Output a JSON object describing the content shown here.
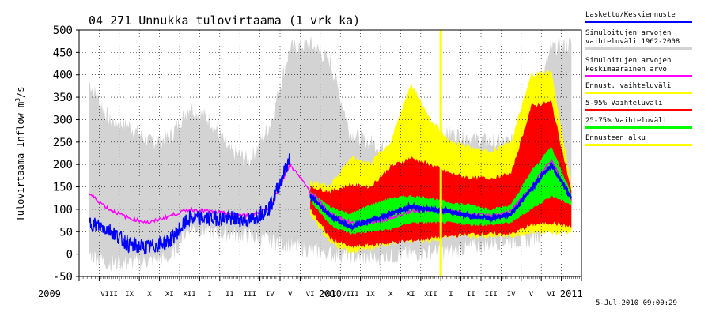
{
  "chart_data": {
    "type": "area",
    "title": "04 271 Unnukka tulovirtaama (1 vrk ka)",
    "ylabel": "Tulovirtaama Inflow m³/s",
    "ylabel_parts": {
      "main": "Tulovirtaama Inflow m",
      "sup": "3",
      "tail": "/s"
    },
    "ylim": [
      -50,
      500
    ],
    "yticks": [
      -50,
      0,
      50,
      100,
      150,
      200,
      250,
      300,
      350,
      400,
      450,
      500
    ],
    "timestamp": "5-Jul-2010 09:00:29",
    "forecast_start_month_index": 18,
    "years": [
      {
        "label": "2009",
        "month_index": 0
      },
      {
        "label": "2010",
        "month_index": 12
      },
      {
        "label": "2011",
        "month_index": 24
      }
    ],
    "months": [
      "VIII",
      "IX",
      "X",
      "XI",
      "XII",
      "I",
      "II",
      "III",
      "IV",
      "V",
      "VI",
      "VII",
      "VIII",
      "IX",
      "X",
      "XI",
      "XII",
      "I",
      "II",
      "III",
      "IV",
      "V",
      "VI"
    ],
    "months_start_index": 7,
    "sim_band": {
      "upper": [
        385,
        300,
        285,
        250,
        260,
        330,
        300,
        230,
        210,
        290,
        460,
        470,
        430,
        270,
        250,
        230,
        230,
        250,
        270,
        260,
        250,
        250,
        300,
        460,
        470
      ],
      "lower": [
        0,
        -20,
        -20,
        -15,
        -10,
        60,
        50,
        45,
        40,
        30,
        20,
        10,
        0,
        -5,
        -10,
        -5,
        0,
        5,
        5,
        15,
        25,
        30,
        30,
        70,
        80
      ]
    },
    "sim_mean": [
      135,
      100,
      80,
      70,
      85,
      100,
      95,
      90,
      85,
      105,
      200,
      140,
      90,
      70,
      70,
      80,
      95,
      100,
      95,
      90,
      85,
      95,
      150,
      210,
      120
    ],
    "observed": [
      70,
      55,
      20,
      15,
      30,
      80,
      80,
      80,
      75,
      105,
      215,
      null,
      null,
      null,
      null,
      null,
      null,
      null,
      null,
      null,
      null,
      null,
      null,
      null,
      null
    ],
    "forecast": [
      null,
      null,
      null,
      null,
      null,
      null,
      null,
      null,
      null,
      null,
      null,
      130,
      85,
      60,
      75,
      90,
      105,
      100,
      95,
      85,
      80,
      90,
      145,
      200,
      125
    ],
    "bands": {
      "ennuste_upper": [
        null,
        null,
        null,
        null,
        null,
        null,
        null,
        null,
        null,
        null,
        null,
        160,
        155,
        215,
        205,
        250,
        380,
        300,
        250,
        240,
        230,
        250,
        400,
        410,
        150
      ],
      "ennuste_lower": [
        null,
        null,
        null,
        null,
        null,
        null,
        null,
        null,
        null,
        null,
        null,
        90,
        25,
        5,
        10,
        25,
        30,
        30,
        40,
        40,
        40,
        40,
        50,
        45,
        50
      ],
      "p95": [
        null,
        null,
        null,
        null,
        null,
        null,
        null,
        null,
        null,
        null,
        null,
        150,
        140,
        155,
        150,
        195,
        215,
        200,
        180,
        170,
        170,
        180,
        330,
        340,
        140
      ],
      "p5": [
        null,
        null,
        null,
        null,
        null,
        null,
        null,
        null,
        null,
        null,
        null,
        100,
        35,
        15,
        20,
        25,
        30,
        35,
        40,
        45,
        45,
        45,
        65,
        70,
        60
      ],
      "p75": [
        null,
        null,
        null,
        null,
        null,
        null,
        null,
        null,
        null,
        null,
        null,
        140,
        105,
        90,
        110,
        125,
        130,
        125,
        115,
        110,
        100,
        110,
        185,
        240,
        135
      ],
      "p25": [
        null,
        null,
        null,
        null,
        null,
        null,
        null,
        null,
        null,
        null,
        null,
        120,
        65,
        45,
        50,
        55,
        70,
        70,
        70,
        65,
        65,
        70,
        100,
        130,
        110
      ]
    }
  },
  "legend": [
    {
      "label": "Laskettu/Keskiennuste",
      "color": "#0000ff"
    },
    {
      "label": "Simuloitujen arvojen vaihteluväli 1962-2008",
      "color": "#d3d3d3"
    },
    {
      "label": "Simuloitujen arvojen keskimääräinen arvo",
      "color": "#ff00ff"
    },
    {
      "label": "Ennust. vaihteluväli",
      "color": "#ffff00"
    },
    {
      "label": "5-95% Vaihteluväli",
      "color": "#ff0000"
    },
    {
      "label": "25-75% Vaihteluväli",
      "color": "#00ff00"
    },
    {
      "label": "Ennusteen alku",
      "color": "#ffff00"
    }
  ]
}
